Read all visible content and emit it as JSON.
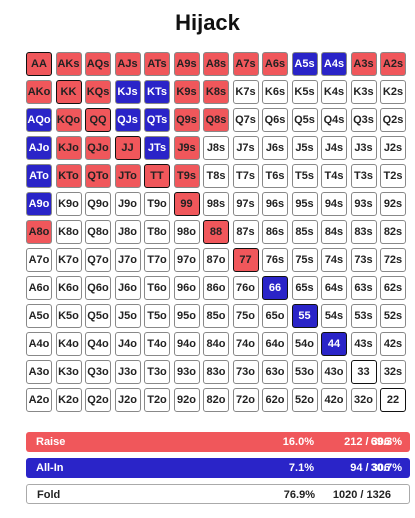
{
  "title": "Hijack",
  "grid": {
    "rows": [
      [
        "AA",
        "AKs",
        "AQs",
        "AJs",
        "ATs",
        "A9s",
        "A8s",
        "A7s",
        "A6s",
        "A5s",
        "A4s",
        "A3s",
        "A2s"
      ],
      [
        "AKo",
        "KK",
        "KQs",
        "KJs",
        "KTs",
        "K9s",
        "K8s",
        "K7s",
        "K6s",
        "K5s",
        "K4s",
        "K3s",
        "K2s"
      ],
      [
        "AQo",
        "KQo",
        "QQ",
        "QJs",
        "QTs",
        "Q9s",
        "Q8s",
        "Q7s",
        "Q6s",
        "Q5s",
        "Q4s",
        "Q3s",
        "Q2s"
      ],
      [
        "AJo",
        "KJo",
        "QJo",
        "JJ",
        "JTs",
        "J9s",
        "J8s",
        "J7s",
        "J6s",
        "J5s",
        "J4s",
        "J3s",
        "J2s"
      ],
      [
        "ATo",
        "KTo",
        "QTo",
        "JTo",
        "TT",
        "T9s",
        "T8s",
        "T7s",
        "T6s",
        "T5s",
        "T4s",
        "T3s",
        "T2s"
      ],
      [
        "A9o",
        "K9o",
        "Q9o",
        "J9o",
        "T9o",
        "99",
        "98s",
        "97s",
        "96s",
        "95s",
        "94s",
        "93s",
        "92s"
      ],
      [
        "A8o",
        "K8o",
        "Q8o",
        "J8o",
        "T8o",
        "98o",
        "88",
        "87s",
        "86s",
        "85s",
        "84s",
        "83s",
        "82s"
      ],
      [
        "A7o",
        "K7o",
        "Q7o",
        "J7o",
        "T7o",
        "97o",
        "87o",
        "77",
        "76s",
        "75s",
        "74s",
        "73s",
        "72s"
      ],
      [
        "A6o",
        "K6o",
        "Q6o",
        "J6o",
        "T6o",
        "96o",
        "86o",
        "76o",
        "66",
        "65s",
        "64s",
        "63s",
        "62s"
      ],
      [
        "A5o",
        "K5o",
        "Q5o",
        "J5o",
        "T5o",
        "95o",
        "85o",
        "75o",
        "65o",
        "55",
        "54s",
        "53s",
        "52s"
      ],
      [
        "A4o",
        "K4o",
        "Q4o",
        "J4o",
        "T4o",
        "94o",
        "84o",
        "74o",
        "64o",
        "54o",
        "44",
        "43s",
        "42s"
      ],
      [
        "A3o",
        "K3o",
        "Q3o",
        "J3o",
        "T3o",
        "93o",
        "83o",
        "73o",
        "63o",
        "53o",
        "43o",
        "33",
        "32s"
      ],
      [
        "A2o",
        "K2o",
        "Q2o",
        "J2o",
        "T2o",
        "92o",
        "82o",
        "72o",
        "62o",
        "52o",
        "42o",
        "32o",
        "22"
      ]
    ],
    "actions": [
      [
        "raise",
        "raise",
        "raise",
        "raise",
        "raise",
        "raise",
        "raise",
        "raise",
        "raise",
        "allin",
        "allin",
        "raise",
        "raise"
      ],
      [
        "raise",
        "raise",
        "raise",
        "allin",
        "allin",
        "raise",
        "raise",
        "fold",
        "fold",
        "fold",
        "fold",
        "fold",
        "fold"
      ],
      [
        "allin",
        "raise",
        "raise",
        "allin",
        "allin",
        "raise",
        "raise",
        "fold",
        "fold",
        "fold",
        "fold",
        "fold",
        "fold"
      ],
      [
        "allin",
        "raise",
        "raise",
        "raise",
        "allin",
        "raise",
        "fold",
        "fold",
        "fold",
        "fold",
        "fold",
        "fold",
        "fold"
      ],
      [
        "allin",
        "raise",
        "raise",
        "raise",
        "raise",
        "raise",
        "fold",
        "fold",
        "fold",
        "fold",
        "fold",
        "fold",
        "fold"
      ],
      [
        "allin",
        "fold",
        "fold",
        "fold",
        "fold",
        "raise",
        "fold",
        "fold",
        "fold",
        "fold",
        "fold",
        "fold",
        "fold"
      ],
      [
        "raise",
        "fold",
        "fold",
        "fold",
        "fold",
        "fold",
        "raise",
        "fold",
        "fold",
        "fold",
        "fold",
        "fold",
        "fold"
      ],
      [
        "fold",
        "fold",
        "fold",
        "fold",
        "fold",
        "fold",
        "fold",
        "raise",
        "fold",
        "fold",
        "fold",
        "fold",
        "fold"
      ],
      [
        "fold",
        "fold",
        "fold",
        "fold",
        "fold",
        "fold",
        "fold",
        "fold",
        "allin",
        "fold",
        "fold",
        "fold",
        "fold"
      ],
      [
        "fold",
        "fold",
        "fold",
        "fold",
        "fold",
        "fold",
        "fold",
        "fold",
        "fold",
        "allin",
        "fold",
        "fold",
        "fold"
      ],
      [
        "fold",
        "fold",
        "fold",
        "fold",
        "fold",
        "fold",
        "fold",
        "fold",
        "fold",
        "fold",
        "allin",
        "fold",
        "fold"
      ],
      [
        "fold",
        "fold",
        "fold",
        "fold",
        "fold",
        "fold",
        "fold",
        "fold",
        "fold",
        "fold",
        "fold",
        "fold",
        "fold"
      ],
      [
        "fold",
        "fold",
        "fold",
        "fold",
        "fold",
        "fold",
        "fold",
        "fold",
        "fold",
        "fold",
        "fold",
        "fold",
        "fold"
      ]
    ]
  },
  "colors": {
    "raise": "#f0575b",
    "allin": "#2a24c8",
    "fold": "#ffffff"
  },
  "summary": {
    "raise": {
      "label": "Raise",
      "percent": "16.0%",
      "count": "212 / 306",
      "share": "69.3%"
    },
    "allin": {
      "label": "All-In",
      "percent": "7.1%",
      "count": "94 / 306",
      "share": "30.7%"
    },
    "fold": {
      "label": "Fold",
      "percent": "76.9%",
      "count": "1020 / 1326"
    }
  }
}
